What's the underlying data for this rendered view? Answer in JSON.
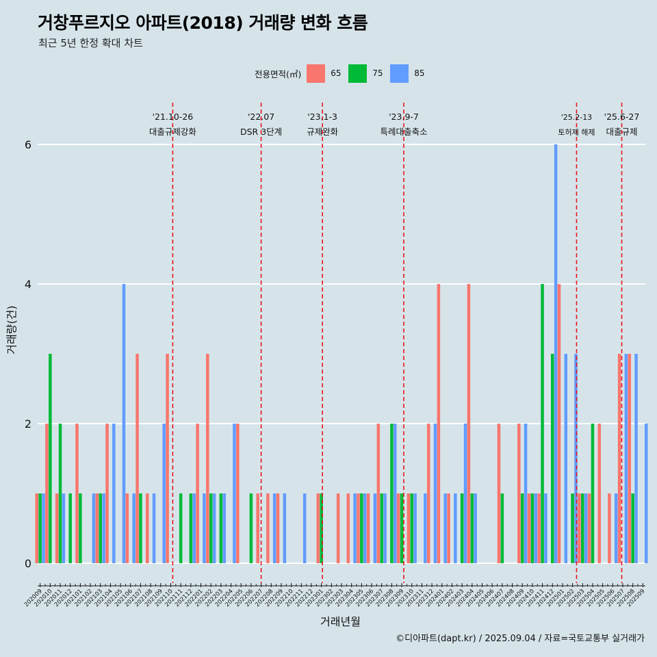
{
  "page": {
    "title": "거창푸르지오 아파트(2018) 거래량 변화 흐름",
    "subtitle": "최근 5년 한정 확대 차트",
    "footer": "©디아파트(dapt.kr) / 2025.09.04 / 자료=국토교통부 실거래가"
  },
  "legend": {
    "title": "전용면적(㎡)",
    "items": [
      {
        "label": "65",
        "color": "#f8766d"
      },
      {
        "label": "75",
        "color": "#00ba38"
      },
      {
        "label": "85",
        "color": "#619cff"
      }
    ]
  },
  "chart_data": {
    "type": "bar",
    "xlabel": "거래년월",
    "ylabel": "거래량(건)",
    "ylim": [
      0,
      6
    ],
    "yticks": [
      0,
      2,
      4,
      6
    ],
    "grid": "horizontal",
    "background": "#d6e4ea",
    "months": [
      "202009",
      "202010",
      "202011",
      "202012",
      "202101",
      "202102",
      "202103",
      "202104",
      "202105",
      "202106",
      "202107",
      "202108",
      "202109",
      "202110",
      "202111",
      "202112",
      "202201",
      "202202",
      "202203",
      "202204",
      "202205",
      "202206",
      "202207",
      "202208",
      "202209",
      "202210",
      "202211",
      "202212",
      "202301",
      "202302",
      "202303",
      "202304",
      "202305",
      "202306",
      "202307",
      "202308",
      "202309",
      "202310",
      "202311",
      "202312",
      "202401",
      "202402",
      "202403",
      "202404",
      "202405",
      "202406",
      "202407",
      "202408",
      "202409",
      "202410",
      "202411",
      "202412",
      "202501",
      "202502",
      "202503",
      "202504",
      "202505",
      "202506",
      "202507",
      "202508",
      "202509"
    ],
    "categories": [
      "202009",
      "202010",
      "202011",
      "202012",
      "202101",
      "202102",
      "202103",
      "202104",
      "202105",
      "202106",
      "202107",
      "202108",
      "202109",
      "202110",
      "202111",
      "202112",
      "202201",
      "202202",
      "202203",
      "202204",
      "202205",
      "202206",
      "202207",
      "202208",
      "202209",
      "202210",
      "202211",
      "202212",
      "202301",
      "202302",
      "202303",
      "202304",
      "202305",
      "202306",
      "202307",
      "202308",
      "202309",
      "202310",
      "202311",
      "202312",
      "202401",
      "202402",
      "202403",
      "202404",
      "202405",
      "202406",
      "202407",
      "202408",
      "202409",
      "202410",
      "202411",
      "202412",
      "202501",
      "202502",
      "202503",
      "202504",
      "202505",
      "202506",
      "202507",
      "202508",
      "202509"
    ],
    "series": [
      {
        "name": "65",
        "color": "#f8766d",
        "values": [
          1,
          2,
          1,
          0,
          2,
          0,
          1,
          2,
          0,
          1,
          3,
          1,
          0,
          3,
          0,
          0,
          2,
          3,
          0,
          0,
          2,
          0,
          1,
          1,
          1,
          0,
          0,
          0,
          1,
          0,
          1,
          1,
          1,
          1,
          2,
          0,
          1,
          1,
          0,
          2,
          4,
          1,
          0,
          4,
          0,
          0,
          2,
          0,
          2,
          1,
          1,
          0,
          4,
          0,
          1,
          1,
          2,
          1,
          3,
          3,
          0
        ]
      },
      {
        "name": "75",
        "color": "#00ba38",
        "values": [
          1,
          3,
          2,
          1,
          1,
          0,
          1,
          0,
          0,
          0,
          1,
          0,
          0,
          0,
          1,
          1,
          0,
          1,
          1,
          0,
          0,
          1,
          0,
          0,
          0,
          0,
          0,
          0,
          1,
          0,
          0,
          0,
          1,
          0,
          1,
          2,
          1,
          1,
          0,
          0,
          0,
          0,
          1,
          1,
          0,
          0,
          1,
          0,
          1,
          1,
          4,
          3,
          0,
          1,
          1,
          2,
          0,
          0,
          0,
          1,
          0
        ]
      },
      {
        "name": "85",
        "color": "#619cff",
        "values": [
          1,
          0,
          1,
          0,
          0,
          1,
          1,
          2,
          4,
          1,
          0,
          1,
          2,
          0,
          0,
          1,
          1,
          1,
          1,
          2,
          0,
          0,
          0,
          1,
          1,
          0,
          1,
          0,
          0,
          0,
          0,
          1,
          1,
          1,
          1,
          2,
          0,
          1,
          1,
          2,
          1,
          1,
          2,
          1,
          0,
          0,
          0,
          0,
          2,
          1,
          1,
          6,
          3,
          3,
          1,
          0,
          0,
          1,
          3,
          3,
          2
        ]
      }
    ],
    "events": [
      {
        "date": "'21.10-26",
        "label": "대출규제강화",
        "at": "202110",
        "offset": 0.2
      },
      {
        "date": "'22.07",
        "label": "DSR 3단계",
        "at": "202207",
        "offset": 0.0
      },
      {
        "date": "'23.1-3",
        "label": "규제완화",
        "at": "202301",
        "offset": 0.1
      },
      {
        "date": "'23.9-7",
        "label": "특례대출축소",
        "at": "202309",
        "offset": 0.2
      },
      {
        "date": "'25.2-13",
        "label": "토허제 해제",
        "at": "202502",
        "offset": 0.4
      },
      {
        "date": "'25.6-27",
        "label": "대출규제",
        "at": "202506",
        "offset": 0.9
      }
    ]
  }
}
